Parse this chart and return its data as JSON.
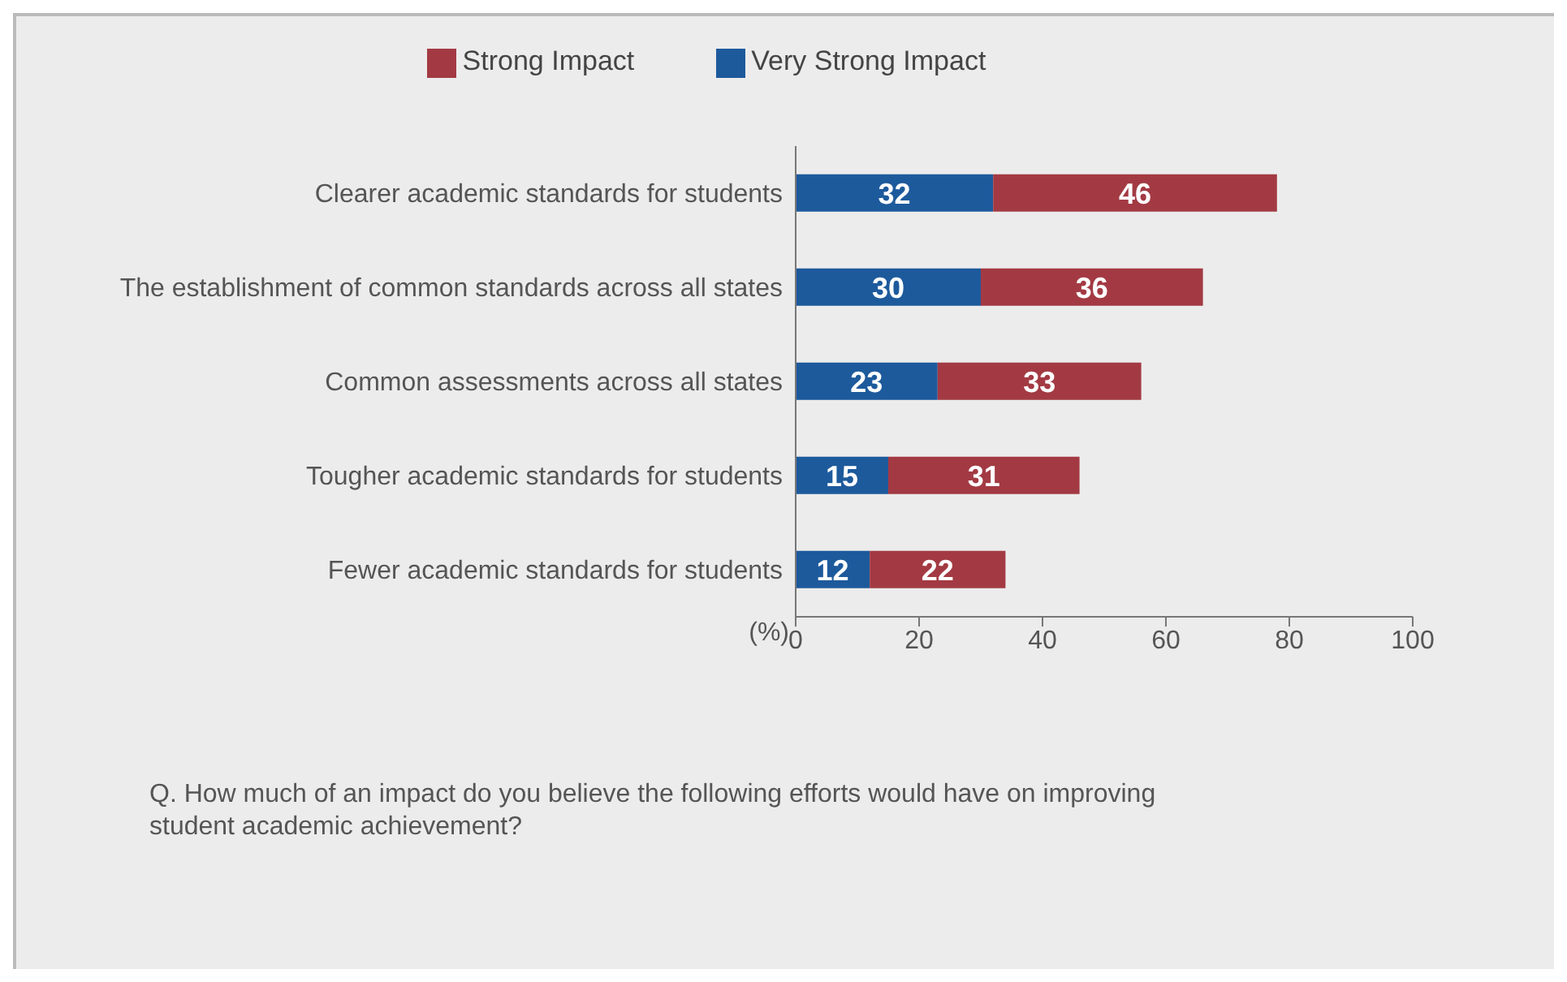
{
  "chart_data": {
    "type": "bar",
    "orientation": "horizontal",
    "stacked": true,
    "categories": [
      "Clearer academic standards for students",
      "The establishment of common standards across all states",
      "Common assessments across all states",
      "Tougher academic standards for students",
      "Fewer academic standards for students"
    ],
    "series": [
      {
        "name": "Very Strong Impact",
        "color": "#1d5a9c",
        "values": [
          32,
          30,
          23,
          15,
          12
        ]
      },
      {
        "name": "Strong Impact",
        "color": "#a33a43",
        "values": [
          46,
          36,
          33,
          31,
          22
        ]
      }
    ],
    "xlabel": "(%)",
    "xlim": [
      0,
      100
    ],
    "xticks": [
      0,
      20,
      40,
      60,
      80,
      100
    ],
    "grid": false,
    "legend": "top",
    "data_labels": true,
    "annotations": [
      "Q. How much of an impact do you believe the following efforts would have on improving student academic achievement?"
    ]
  }
}
